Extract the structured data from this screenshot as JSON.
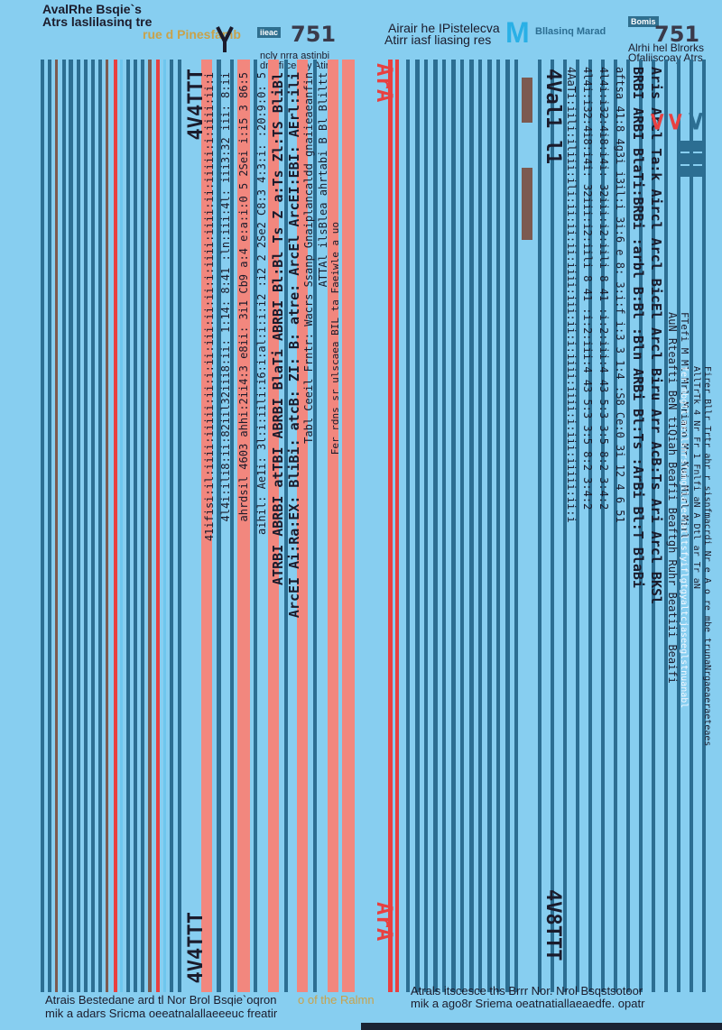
{
  "header_left": {
    "title_line1": "AvalRhe Bsqie`s",
    "title_line2": "Atrs laslilasinq tre",
    "brand_faded": "rue d Pinesfamb",
    "logo_text": "iieac",
    "big_number": "751",
    "caption1": "ncly nrra astinbi",
    "caption2": "dnalfiiceecy Atirs"
  },
  "header_right": {
    "title_line1": "Airair he IPistelecva",
    "title_line2": "Atirr iasf liasing res",
    "brand_m": "M",
    "brand_sub": "Bllasinq Marad",
    "big_number": "751",
    "stamp": "Bomis",
    "caption1": "Alrhi hel Blrorks",
    "caption2": "Ofaliiscoay Atrs"
  },
  "left_text_columns": [
    "41ifisi:il:iiii:iiiii:ii:i:ii:iii:ii:ii:i:iiii:iiii:ii:iiiii:i:iiii:ii:i",
    "4l4i:ili8:ii:82iil32iii8:ii: 1:14: 8:41 :ln:iii:4l: iii3:32 iii: 8:ii",
    "ahrdsil 4603 ahhi:2ii4:3 e8ii: 3i1 Cb9 a:4 e:a:i:0 5 2Sei i:i5 3 86:5",
    "aihil: Ae1i: 3l:i:iili:i6:i:al:i:i:i2 :i2 2 2Se2 C8:3 4:3:i: :20:9:0: 5",
    "ATRBI ABRBI atTBI ABRBI BlaTi ABRBI Bl:Bl Ts Z a:Ts Zl:TS BliBl",
    "ArcEI Ai:Ra:EX: BliBi: atcB: ZI: B: atre: ArcEl ArcEI:EBI: AErl:ili",
    "Tabl Ceeil Frntr: Wacrs Ssanp Gnaiplancaldd gnaiieaeanfin",
    "ATTAl ilsBlea ahrtabi B Bl Bliltt",
    "Fer rdns sr ulscaea BIL ta Faeiwle a uo"
  ],
  "right_text_columns": [
    "4AaTi:iili:iliii:ili:ii:ii:ii:iiii:iii:ii:i:iiii:iiii:i:iii:iiiii:ii:i",
    "4l4i:i32:4i8:i4i: 32iii:i2:iili 8 41 :i:2:iii:4 43 5:3 3:5 8:2 3:4:2",
    "4l4i:i32:4i8:i4i: 32iii:i2:iili 8 41 :i:2:iii:4 43 5:3 3:5 8:2 3:4:2",
    "aftsa 41:8 4g3i i3il:i 3i:6 e 8: 3:i:f i:3 3 1:4 :S8 Ce:0 3i 12 4 6 51",
    "BRBI ARBI BlaTi:BRBi :arbl B:Bl :Bln ARBi Bl:Ts :ArBi Bl:T BlaBi",
    "Aris Arcl Ta:k Aircl Arcl BicEl Arcl Biru Arr AcB:Ts Ari Arcl BKSl",
    "AuN Rteafti BeN tiQiah Beafii Beaftgh Ruhr Beatiii Beaifi",
    "FTefi M Ml Mrl Mriaro Mr Nui Mirl Mirl",
    "AllTrTk 4 Nr Fr 1 Fnlfi aN A Dtl ar Tr aN",
    "fer mbgtl meilsnrsfamgtlalecnatltsfyiflgtgyaltcjaseeglstnuanabl",
    "Firer Bllr Trtr ahr r sisnfmacrdi Nr e A o re mbe trunaNrgaeaeraeteaes"
  ],
  "right_side_labels": {
    "top_mark": "4Val1 l1",
    "bottom_mark": "4V8TTT"
  },
  "left_side_labels": {
    "top_mark": "4V4TTT",
    "bottom_mark": "4V4TTT"
  },
  "center_red_labels": {
    "top": "ArA",
    "bottom": "ArA"
  },
  "footer": {
    "left_line1": "Atrais Bestedane ard tl Nor Brol Bsqie`oqron",
    "left_line1_faded": "o of the Ralmn",
    "left_line2": "mik a adars Sricma oeeatnalallaeeeuc freatir",
    "right_line1": "Atrals itscesce ths Brrr Nor. Nrol Bsqstsotoor",
    "right_line2": "mik a ago8r Sriema oeatnatiallaeaedfe. opatr"
  },
  "colors": {
    "background": "#87cef0",
    "teal": "#2c6e92",
    "red": "#e84040",
    "salmon": "#f2877e",
    "brown": "#7c5a50",
    "sky": "#6ec6ee"
  }
}
